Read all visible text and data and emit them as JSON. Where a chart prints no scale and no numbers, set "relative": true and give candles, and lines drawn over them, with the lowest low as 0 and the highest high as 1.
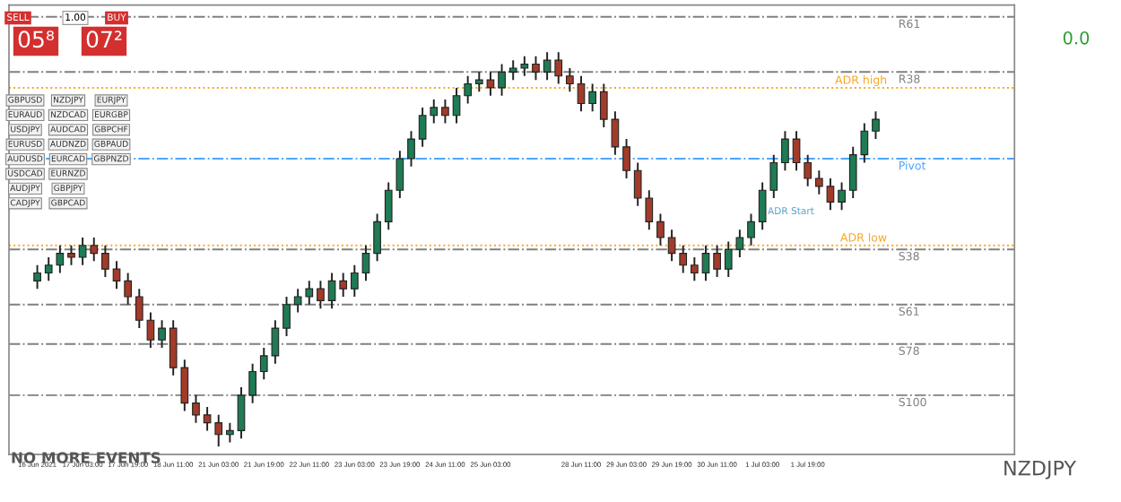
{
  "chart_data": {
    "type": "candlestick",
    "relative": true,
    "tick_labels": "x",
    "categories": [
      "16 Jun 2021",
      null,
      null,
      null,
      "17 Jun 03:00",
      null,
      null,
      null,
      "17 Jun 19:00",
      null,
      null,
      null,
      "18 Jun 11:00",
      null,
      null,
      null,
      "21 Jun 03:00",
      null,
      null,
      null,
      "21 Jun 19:00",
      null,
      null,
      null,
      "22 Jun 11:00",
      null,
      null,
      null,
      "23 Jun 03:00",
      null,
      null,
      null,
      "23 Jun 19:00",
      null,
      null,
      null,
      "24 Jun 11:00",
      null,
      null,
      null,
      "25 Jun 03:00",
      null,
      null,
      null,
      null,
      null,
      null,
      null,
      "28 Jun 11:00",
      null,
      null,
      null,
      "29 Jun 03:00",
      null,
      null,
      null,
      "29 Jun 19:00",
      null,
      null,
      null,
      "30 Jun 11:00",
      null,
      null,
      null,
      "1 Jul 03:00",
      null,
      null,
      null,
      "1 Jul 19:00",
      null,
      null,
      null,
      null,
      null,
      null
    ],
    "ohlc": [
      [
        0.42,
        0.46,
        0.4,
        0.44
      ],
      [
        0.44,
        0.48,
        0.42,
        0.46
      ],
      [
        0.46,
        0.51,
        0.44,
        0.49
      ],
      [
        0.49,
        0.51,
        0.46,
        0.48
      ],
      [
        0.48,
        0.53,
        0.46,
        0.51
      ],
      [
        0.51,
        0.53,
        0.47,
        0.49
      ],
      [
        0.49,
        0.51,
        0.43,
        0.45
      ],
      [
        0.45,
        0.47,
        0.4,
        0.42
      ],
      [
        0.42,
        0.44,
        0.36,
        0.38
      ],
      [
        0.38,
        0.4,
        0.3,
        0.32
      ],
      [
        0.32,
        0.34,
        0.25,
        0.27
      ],
      [
        0.27,
        0.32,
        0.25,
        0.3
      ],
      [
        0.3,
        0.32,
        0.18,
        0.2
      ],
      [
        0.2,
        0.22,
        0.09,
        0.11
      ],
      [
        0.11,
        0.13,
        0.06,
        0.08
      ],
      [
        0.08,
        0.1,
        0.04,
        0.06
      ],
      [
        0.06,
        0.08,
        0.0,
        0.03
      ],
      [
        0.03,
        0.06,
        0.01,
        0.04
      ],
      [
        0.04,
        0.15,
        0.02,
        0.13
      ],
      [
        0.13,
        0.21,
        0.11,
        0.19
      ],
      [
        0.19,
        0.25,
        0.17,
        0.23
      ],
      [
        0.23,
        0.32,
        0.21,
        0.3
      ],
      [
        0.3,
        0.38,
        0.28,
        0.36
      ],
      [
        0.36,
        0.4,
        0.34,
        0.38
      ],
      [
        0.38,
        0.42,
        0.36,
        0.4
      ],
      [
        0.4,
        0.42,
        0.35,
        0.37
      ],
      [
        0.37,
        0.44,
        0.35,
        0.42
      ],
      [
        0.42,
        0.44,
        0.38,
        0.4
      ],
      [
        0.4,
        0.46,
        0.38,
        0.44
      ],
      [
        0.44,
        0.51,
        0.42,
        0.49
      ],
      [
        0.49,
        0.59,
        0.47,
        0.57
      ],
      [
        0.57,
        0.67,
        0.55,
        0.65
      ],
      [
        0.65,
        0.75,
        0.63,
        0.73
      ],
      [
        0.73,
        0.8,
        0.71,
        0.78
      ],
      [
        0.78,
        0.86,
        0.76,
        0.84
      ],
      [
        0.84,
        0.88,
        0.82,
        0.86
      ],
      [
        0.86,
        0.88,
        0.82,
        0.84
      ],
      [
        0.84,
        0.91,
        0.82,
        0.89
      ],
      [
        0.89,
        0.94,
        0.87,
        0.92
      ],
      [
        0.92,
        0.95,
        0.9,
        0.93
      ],
      [
        0.93,
        0.95,
        0.89,
        0.91
      ],
      [
        0.91,
        0.97,
        0.89,
        0.95
      ],
      [
        0.95,
        0.98,
        0.93,
        0.96
      ],
      [
        0.96,
        0.99,
        0.94,
        0.97
      ],
      [
        0.97,
        0.99,
        0.93,
        0.95
      ],
      [
        0.95,
        1.0,
        0.93,
        0.98
      ],
      [
        0.98,
        1.0,
        0.92,
        0.94
      ],
      [
        0.94,
        0.96,
        0.9,
        0.92
      ],
      [
        0.92,
        0.94,
        0.85,
        0.87
      ],
      [
        0.87,
        0.92,
        0.85,
        0.9
      ],
      [
        0.9,
        0.92,
        0.81,
        0.83
      ],
      [
        0.83,
        0.85,
        0.74,
        0.76
      ],
      [
        0.76,
        0.78,
        0.68,
        0.7
      ],
      [
        0.7,
        0.72,
        0.61,
        0.63
      ],
      [
        0.63,
        0.65,
        0.55,
        0.57
      ],
      [
        0.57,
        0.59,
        0.51,
        0.53
      ],
      [
        0.53,
        0.55,
        0.47,
        0.49
      ],
      [
        0.49,
        0.51,
        0.44,
        0.46
      ],
      [
        0.46,
        0.48,
        0.42,
        0.44
      ],
      [
        0.44,
        0.51,
        0.42,
        0.49
      ],
      [
        0.49,
        0.51,
        0.43,
        0.45
      ],
      [
        0.45,
        0.52,
        0.43,
        0.5
      ],
      [
        0.5,
        0.55,
        0.48,
        0.53
      ],
      [
        0.53,
        0.59,
        0.51,
        0.57
      ],
      [
        0.57,
        0.67,
        0.55,
        0.65
      ],
      [
        0.65,
        0.74,
        0.63,
        0.72
      ],
      [
        0.72,
        0.8,
        0.7,
        0.78
      ],
      [
        0.78,
        0.8,
        0.7,
        0.72
      ],
      [
        0.72,
        0.74,
        0.66,
        0.68
      ],
      [
        0.68,
        0.7,
        0.64,
        0.66
      ],
      [
        0.66,
        0.68,
        0.6,
        0.62
      ],
      [
        0.62,
        0.67,
        0.6,
        0.65
      ],
      [
        0.65,
        0.76,
        0.63,
        0.74
      ],
      [
        0.74,
        0.82,
        0.72,
        0.8
      ],
      [
        0.8,
        0.85,
        0.78,
        0.83
      ]
    ],
    "colors": [
      "#1e7b53",
      "#1e7b53",
      "#1e7b53",
      "#a23b2a",
      "#1e7b53",
      "#a23b2a",
      "#a23b2a",
      "#a23b2a",
      "#a23b2a",
      "#a23b2a",
      "#a23b2a",
      "#1e7b53",
      "#a23b2a",
      "#a23b2a",
      "#a23b2a",
      "#a23b2a",
      "#a23b2a",
      "#1e7b53",
      "#1e7b53",
      "#1e7b53",
      "#1e7b53",
      "#1e7b53",
      "#1e7b53",
      "#1e7b53",
      "#1e7b53",
      "#a23b2a",
      "#1e7b53",
      "#a23b2a",
      "#1e7b53",
      "#1e7b53",
      "#1e7b53",
      "#1e7b53",
      "#1e7b53",
      "#1e7b53",
      "#1e7b53",
      "#1e7b53",
      "#a23b2a",
      "#1e7b53",
      "#1e7b53",
      "#1e7b53",
      "#a23b2a",
      "#1e7b53",
      "#1e7b53",
      "#1e7b53",
      "#a23b2a",
      "#1e7b53",
      "#a23b2a",
      "#a23b2a",
      "#a23b2a",
      "#1e7b53",
      "#a23b2a",
      "#a23b2a",
      "#a23b2a",
      "#a23b2a",
      "#a23b2a",
      "#a23b2a",
      "#a23b2a",
      "#a23b2a",
      "#a23b2a",
      "#1e7b53",
      "#a23b2a",
      "#1e7b53",
      "#1e7b53",
      "#1e7b53",
      "#1e7b53",
      "#1e7b53",
      "#1e7b53",
      "#a23b2a",
      "#a23b2a",
      "#a23b2a",
      "#a23b2a",
      "#1e7b53",
      "#1e7b53",
      "#1e7b53",
      "#1e7b53"
    ],
    "ref_lines": [
      {
        "axis": "y",
        "value": 1.09,
        "label": "R61",
        "color": "#808080",
        "line_style": "dashdot"
      },
      {
        "axis": "y",
        "value": 0.95,
        "label": "R38",
        "color": "#808080",
        "line_style": "dashdot"
      },
      {
        "axis": "y",
        "value": 0.91,
        "label": "ADR high",
        "color": "#f5a623",
        "line_style": "dotted"
      },
      {
        "axis": "y",
        "value": 0.73,
        "label": "Pivot",
        "color": "#4da6ff",
        "line_style": "dashdot"
      },
      {
        "axis": "y",
        "value": 0.51,
        "label": "ADR low",
        "color": "#f5a623",
        "line_style": "dotted"
      },
      {
        "axis": "y",
        "value": 0.5,
        "label": "S38",
        "color": "#808080",
        "line_style": "dashdot"
      },
      {
        "axis": "y",
        "value": 0.36,
        "label": "S61",
        "color": "#808080",
        "line_style": "dashdot"
      },
      {
        "axis": "y",
        "value": 0.26,
        "label": "S78",
        "color": "#808080",
        "line_style": "dashdot"
      },
      {
        "axis": "y",
        "value": 0.13,
        "label": "S100",
        "color": "#808080",
        "line_style": "dashdot"
      }
    ],
    "annotations": [
      "0.0",
      "NO MORE EVENTS",
      "NZDJPY",
      "ADR Start",
      "SELL",
      "1.00",
      "BUY",
      "05⁸",
      "07²",
      "GBPUSD",
      "EURAUD",
      "USDJPY",
      "EURUSD",
      "AUDUSD",
      "USDCAD",
      "AUDJPY",
      "CADJPY",
      "NZDJPY",
      "NZDCAD",
      "AUDCAD",
      "AUDNZD",
      "EURCAD",
      "EURNZD",
      "GBPJPY",
      "GBPCAD",
      "EURJPY",
      "EURGBP",
      "GBPCHF",
      "GBPAUD",
      "GBPNZD"
    ]
  }
}
